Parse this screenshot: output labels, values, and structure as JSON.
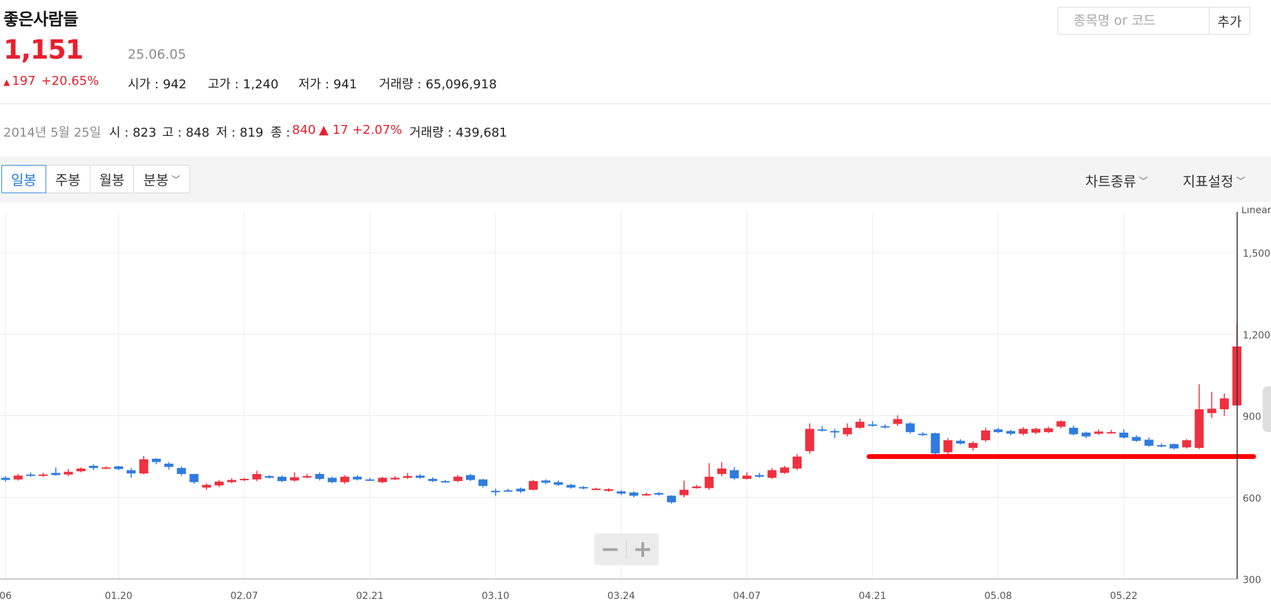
{
  "stock": {
    "name": "좋은사람들",
    "price": "1,151",
    "date": "25.06.05",
    "change": "197",
    "change_pct": "+20.65%",
    "stats": [
      {
        "label": "시가 :",
        "value": "942"
      },
      {
        "label": "고가 :",
        "value": "1,240"
      },
      {
        "label": "저가 :",
        "value": "941"
      },
      {
        "label": "거래량 :",
        "value": "65,096,918"
      }
    ]
  },
  "hover": {
    "date": "2014년 5월 25일",
    "open": "시 : 823",
    "high": "고 : 848",
    "low": "저 : 819",
    "close_label": "종 :",
    "close": "840",
    "change": "17",
    "change_pct": "+2.07%",
    "volume": "거래량 : 439,681"
  },
  "search": {
    "placeholder": "종목명 or 코드",
    "add_label": "추가"
  },
  "toolbar": {
    "tabs": [
      {
        "label": "일봉",
        "active": true
      },
      {
        "label": "주봉"
      },
      {
        "label": "월봉"
      },
      {
        "label": "분봉"
      }
    ],
    "chart_type": "차트종류",
    "indicator": "지표설정"
  },
  "colors": {
    "up": "#f0303f",
    "down": "#2f7be0",
    "line": "#ff0000",
    "grid": "#ececec"
  },
  "chart_data": {
    "type": "candlestick",
    "scale_label": "Linear",
    "ylim": [
      300,
      1650
    ],
    "yticks": [
      1500,
      1200,
      900,
      600,
      300
    ],
    "xticks": [
      {
        "label": "06",
        "i": 0
      },
      {
        "label": "01.20",
        "i": 9
      },
      {
        "label": "02.07",
        "i": 19
      },
      {
        "label": "02.21",
        "i": 29
      },
      {
        "label": "03.10",
        "i": 39
      },
      {
        "label": "03.24",
        "i": 49
      },
      {
        "label": "04.07",
        "i": 59
      },
      {
        "label": "04.21",
        "i": 69
      },
      {
        "label": "05.08",
        "i": 79
      },
      {
        "label": "05.22",
        "i": 89
      }
    ],
    "candles": [
      [
        672,
        664,
        678,
        658
      ],
      [
        666,
        680,
        686,
        662
      ],
      [
        684,
        680,
        692,
        676
      ],
      [
        680,
        684,
        690,
        676
      ],
      [
        690,
        682,
        710,
        680
      ],
      [
        684,
        694,
        704,
        678
      ],
      [
        696,
        706,
        710,
        692
      ],
      [
        716,
        708,
        722,
        700
      ],
      [
        708,
        710,
        714,
        704
      ],
      [
        714,
        704,
        716,
        700
      ],
      [
        700,
        688,
        708,
        672
      ],
      [
        688,
        740,
        752,
        684
      ],
      [
        742,
        730,
        744,
        722
      ],
      [
        724,
        712,
        730,
        702
      ],
      [
        708,
        686,
        714,
        680
      ],
      [
        686,
        656,
        686,
        650
      ],
      [
        636,
        646,
        652,
        628
      ],
      [
        644,
        658,
        664,
        638
      ],
      [
        656,
        664,
        670,
        652
      ],
      [
        664,
        668,
        672,
        660
      ],
      [
        666,
        686,
        698,
        660
      ],
      [
        678,
        672,
        682,
        670
      ],
      [
        676,
        660,
        680,
        656
      ],
      [
        662,
        674,
        692,
        658
      ],
      [
        676,
        678,
        686,
        670
      ],
      [
        686,
        668,
        692,
        662
      ],
      [
        672,
        656,
        676,
        652
      ],
      [
        656,
        676,
        682,
        650
      ],
      [
        676,
        666,
        682,
        662
      ],
      [
        666,
        664,
        672,
        662
      ],
      [
        656,
        672,
        676,
        652
      ],
      [
        666,
        672,
        678,
        664
      ],
      [
        672,
        678,
        690,
        668
      ],
      [
        680,
        672,
        686,
        668
      ],
      [
        668,
        660,
        674,
        656
      ],
      [
        660,
        658,
        664,
        654
      ],
      [
        660,
        676,
        682,
        656
      ],
      [
        682,
        664,
        686,
        660
      ],
      [
        666,
        642,
        668,
        636
      ],
      [
        624,
        622,
        632,
        606
      ],
      [
        626,
        622,
        632,
        620
      ],
      [
        632,
        622,
        636,
        616
      ],
      [
        628,
        660,
        664,
        626
      ],
      [
        662,
        654,
        666,
        648
      ],
      [
        656,
        646,
        662,
        642
      ],
      [
        646,
        636,
        650,
        632
      ],
      [
        638,
        636,
        642,
        630
      ],
      [
        632,
        632,
        636,
        628
      ],
      [
        624,
        630,
        634,
        620
      ],
      [
        622,
        614,
        626,
        608
      ],
      [
        618,
        606,
        622,
        600
      ],
      [
        610,
        612,
        618,
        606
      ],
      [
        616,
        610,
        620,
        606
      ],
      [
        606,
        582,
        608,
        576
      ],
      [
        608,
        628,
        662,
        600
      ],
      [
        634,
        640,
        646,
        632
      ],
      [
        634,
        676,
        726,
        628
      ],
      [
        686,
        706,
        730,
        678
      ],
      [
        700,
        670,
        712,
        664
      ],
      [
        668,
        680,
        692,
        666
      ],
      [
        682,
        676,
        690,
        672
      ],
      [
        672,
        700,
        708,
        668
      ],
      [
        690,
        710,
        716,
        686
      ],
      [
        706,
        750,
        760,
        700
      ],
      [
        770,
        852,
        872,
        760
      ],
      [
        850,
        848,
        862,
        842
      ],
      [
        844,
        842,
        852,
        818
      ],
      [
        832,
        856,
        872,
        824
      ],
      [
        856,
        878,
        890,
        852
      ],
      [
        868,
        866,
        880,
        860
      ],
      [
        862,
        858,
        868,
        854
      ],
      [
        870,
        888,
        902,
        862
      ],
      [
        872,
        840,
        876,
        834
      ],
      [
        834,
        830,
        840,
        826
      ],
      [
        836,
        762,
        838,
        758
      ],
      [
        766,
        810,
        818,
        756
      ],
      [
        808,
        798,
        814,
        794
      ],
      [
        782,
        800,
        806,
        772
      ],
      [
        810,
        846,
        856,
        804
      ],
      [
        850,
        840,
        856,
        836
      ],
      [
        844,
        834,
        848,
        828
      ],
      [
        834,
        852,
        858,
        828
      ],
      [
        838,
        852,
        856,
        832
      ],
      [
        840,
        854,
        860,
        836
      ],
      [
        860,
        880,
        884,
        854
      ],
      [
        856,
        832,
        864,
        828
      ],
      [
        838,
        824,
        842,
        818
      ],
      [
        834,
        842,
        850,
        830
      ],
      [
        838,
        840,
        848,
        834
      ],
      [
        838,
        820,
        850,
        816
      ],
      [
        822,
        808,
        828,
        804
      ],
      [
        812,
        790,
        820,
        786
      ],
      [
        792,
        788,
        798,
        784
      ],
      [
        796,
        780,
        798,
        776
      ],
      [
        784,
        810,
        814,
        780
      ],
      [
        782,
        924,
        1016,
        778
      ],
      [
        910,
        926,
        988,
        892
      ],
      [
        924,
        964,
        982,
        900
      ],
      [
        938,
        1155,
        1240,
        938
      ]
    ],
    "support_line": {
      "value": 750,
      "from_i": 69,
      "to_i": 99
    }
  }
}
